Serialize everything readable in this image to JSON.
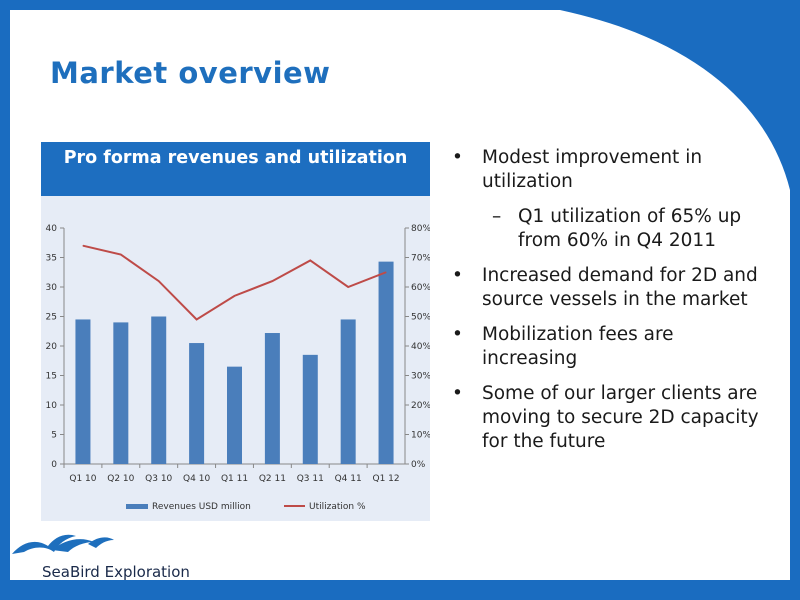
{
  "slide": {
    "title": "Market overview",
    "chart_header": "Pro forma revenues and utilization",
    "bullets": [
      {
        "text": "Modest improvement in utilization"
      },
      {
        "text": "Q1 utilization of 65% up from 60% in Q4 2011",
        "sub": true
      },
      {
        "text": "Increased demand for 2D and source vessels in the market"
      },
      {
        "text": "Mobilization fees are increasing"
      },
      {
        "text": "Some of our larger clients are moving to secure 2D capacity for the future"
      }
    ],
    "bullet_char": "•",
    "sub_char": "–",
    "logo_text": "SeaBird Exploration"
  },
  "colors": {
    "accent": "#1e6fbd",
    "bar": "#4a7ebb",
    "line": "#be4b48"
  },
  "chart_data": {
    "type": "bar",
    "categories": [
      "Q1 10",
      "Q2 10",
      "Q3 10",
      "Q4 10",
      "Q1 11",
      "Q2 11",
      "Q3 11",
      "Q4 11",
      "Q1 12"
    ],
    "series": [
      {
        "name": "Revenues USD million",
        "type": "bar",
        "axis": "left",
        "values": [
          24.5,
          24,
          25,
          20.5,
          16.5,
          22.2,
          18.5,
          24.5,
          34.3
        ]
      },
      {
        "name": "Utilization %",
        "type": "line",
        "axis": "right",
        "values": [
          74,
          71,
          62,
          49,
          57,
          62,
          69,
          60,
          65
        ]
      }
    ],
    "y_left": {
      "range": [
        0,
        40
      ],
      "ticks": [
        "0",
        "5",
        "10",
        "15",
        "20",
        "25",
        "30",
        "35",
        "40"
      ]
    },
    "y_right": {
      "range": [
        0,
        80
      ],
      "ticks": [
        "0%",
        "10%",
        "20%",
        "30%",
        "40%",
        "50%",
        "60%",
        "70%",
        "80%"
      ]
    },
    "grid": false,
    "legend": "bottom"
  }
}
